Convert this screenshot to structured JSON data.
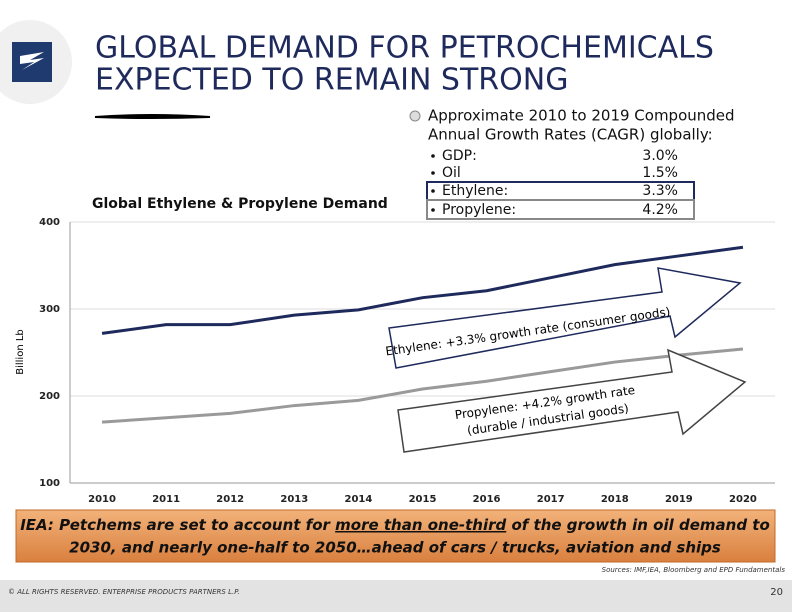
{
  "header": {
    "title_line1": "GLOBAL DEMAND FOR PETROCHEMICALS",
    "title_line2": "EXPECTED TO REMAIN STRONG"
  },
  "cagr": {
    "intro_line1": "Approximate 2010 to 2019 Compounded",
    "intro_line2": "Annual Growth Rates (CAGR) globally:",
    "items": [
      {
        "label": "GDP:",
        "value": "3.0%"
      },
      {
        "label": "Oil",
        "value": "1.5%"
      },
      {
        "label": "Ethylene:",
        "value": "3.3%"
      },
      {
        "label": "Propylene:",
        "value": "4.2%"
      }
    ]
  },
  "chart_data": {
    "type": "line",
    "title": "Global Ethylene & Propylene Demand",
    "y_label": "Billion Lb",
    "categories": [
      "2010",
      "2011",
      "2012",
      "2013",
      "2014",
      "2015",
      "2016",
      "2017",
      "2018",
      "2019",
      "2020"
    ],
    "series": [
      {
        "name": "Ethylene",
        "color": "#1f2a5c",
        "values": [
          272,
          282,
          282,
          293,
          299,
          313,
          321,
          336,
          351,
          361,
          371
        ]
      },
      {
        "name": "Propylene",
        "color": "#9a9a9a",
        "values": [
          170,
          175,
          180,
          189,
          195,
          208,
          217,
          228,
          239,
          247,
          254
        ]
      }
    ],
    "ylim": [
      100,
      400
    ],
    "yticks": [
      100,
      200,
      300,
      400
    ],
    "grid": true,
    "annotations": [
      "Ethylene:  +3.3% growth rate (consumer goods)",
      "Propylene:  +4.2% growth rate",
      "(durable / industrial goods)"
    ]
  },
  "banner": {
    "line1_before": "IEA:  Petchems are set to account for ",
    "line1_underlined": "more than one-third",
    "line1_after": " of the growth in oil demand to",
    "line2": "2030, and nearly one-half to 2050…ahead of cars / trucks, aviation and ships"
  },
  "sources": "Sources:  IMF,IEA, Bloomberg and EPD Fundamentals",
  "footer": {
    "copyright": "© ALL RIGHTS RESERVED. ENTERPRISE PRODUCTS PARTNERS L.P.",
    "page": "20"
  }
}
